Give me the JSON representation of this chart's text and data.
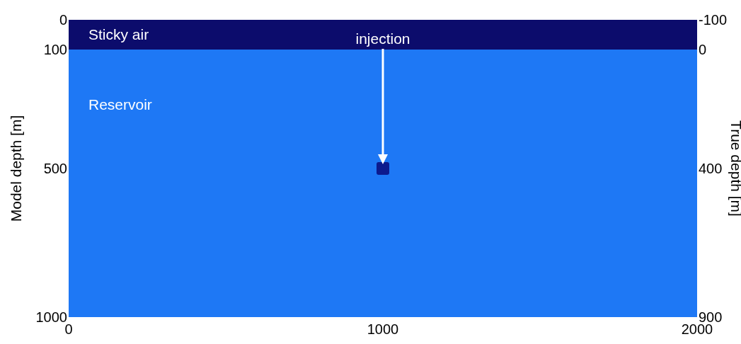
{
  "chart_data": {
    "type": "scatter",
    "ylabel": "Model depth [m]",
    "y2label": "True depth [m]",
    "xlim": [
      0,
      2000
    ],
    "xticks": [
      0,
      1000,
      2000
    ],
    "ylim": [
      1000,
      0
    ],
    "yticks": [
      0,
      100,
      500,
      1000
    ],
    "y2lim": [
      900,
      -100
    ],
    "y2ticks": [
      -100,
      0,
      400,
      900
    ],
    "bands": [
      {
        "axis": "y",
        "from": 0,
        "to": 100,
        "label": "Sticky air",
        "color": "#0c0c6c"
      },
      {
        "axis": "y",
        "from": 100,
        "to": 1000,
        "label": "Reservoir",
        "color": "#1e78f5"
      }
    ],
    "series": [
      {
        "x": [
          1000
        ],
        "values": [
          500
        ],
        "color": "#0c1a8e"
      }
    ],
    "marker": "square",
    "annotations": [
      "injection"
    ]
  }
}
